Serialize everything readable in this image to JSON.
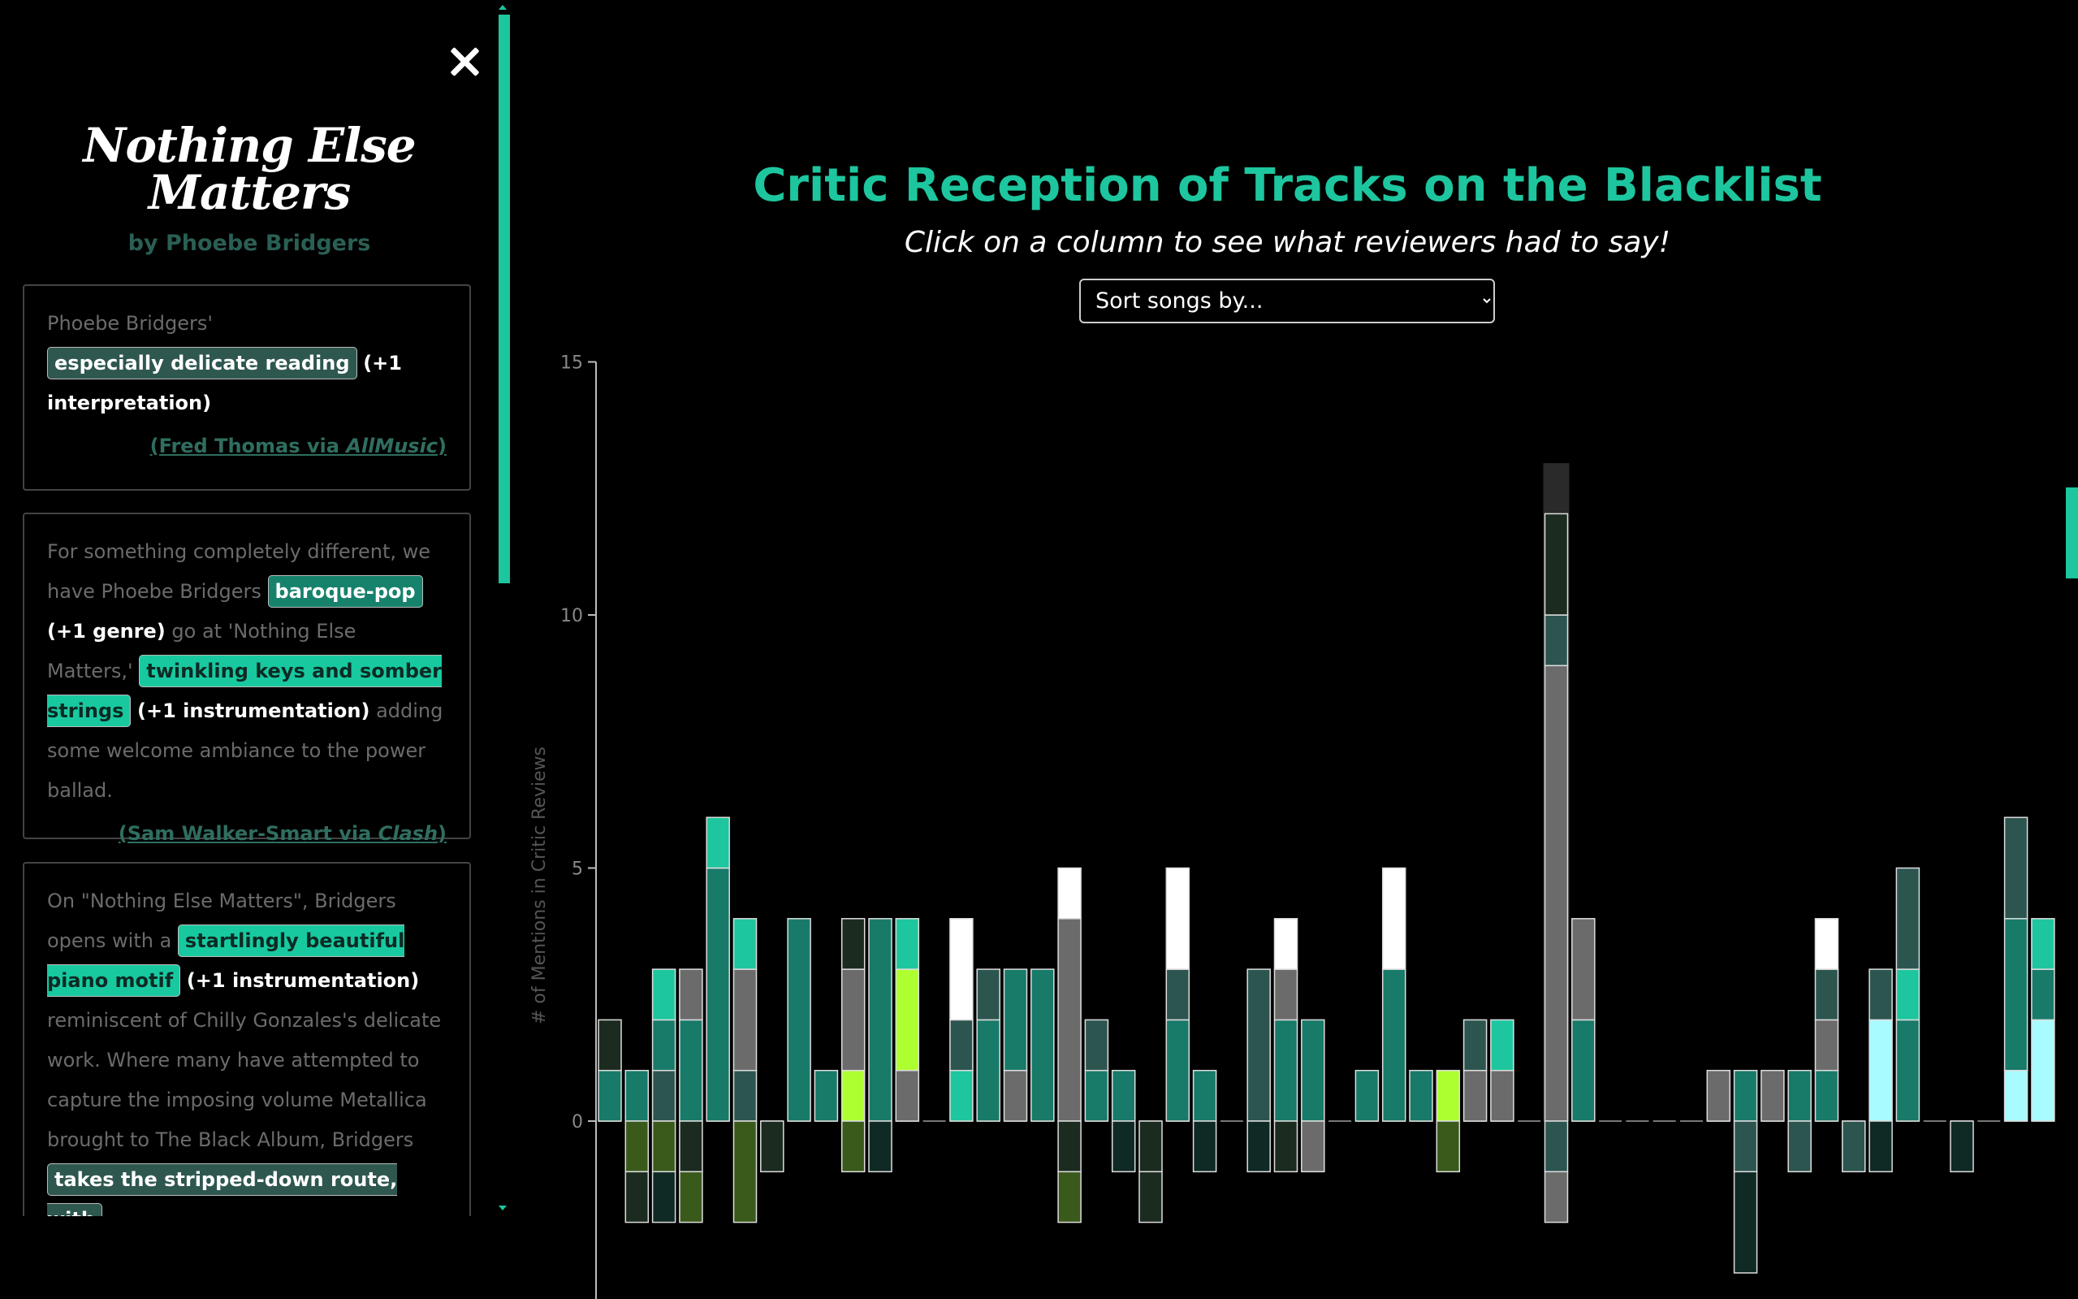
{
  "sidebar": {
    "close_label": "",
    "song_title_line1": "Nothing Else",
    "song_title_line2": "Matters",
    "artist": "by Phoebe Bridgers",
    "reviews": [
      {
        "pre": "Phoebe Bridgers'",
        "highlight1": "especially delicate reading",
        "tag1": "(+1 interpretation)",
        "cite_prefix": "(Fred Thomas via ",
        "cite_source": "AllMusic",
        "cite_suffix": ")"
      },
      {
        "pre": "For something completely different, we have Phoebe Bridgers",
        "highlight1": "baroque-pop",
        "tag1": "(+1 genre)",
        "mid": "go at 'Nothing Else Matters,'",
        "highlight2": "twinkling keys and somber strings",
        "tag2": "(+1 instrumentation)",
        "post": "adding some welcome ambiance to the power ballad.",
        "cite_prefix": "(Sam Walker-Smart via ",
        "cite_source": "Clash",
        "cite_suffix": ")"
      },
      {
        "pre": "On \"Nothing Else Matters\", Bridgers opens with a",
        "highlight1": "startlingly beautiful piano motif",
        "tag1": "(+1 instrumentation)",
        "mid": "reminiscent of Chilly Gonzales's delicate work. Where many have attempted to capture the imposing volume Metallica brought to The Black Album, Bridgers",
        "highlight2": "takes the stripped-down route, with"
      }
    ]
  },
  "header": {
    "title": "Critic Reception of Tracks on the Blacklist",
    "subtitle": "Click on a column to see what reviewers had to say!",
    "sort_placeholder": "Sort songs by..."
  },
  "colors": {
    "accent": "#1dc69e",
    "c0": "#187a68",
    "c1": "#1dc69e",
    "c2": "#6b6b6b",
    "c3": "#2d5550",
    "c4": "#ffffff",
    "c5": "#adff2f",
    "c6": "#3a5a1c",
    "c7": "#0f2a25",
    "c8": "#1c2b20",
    "c9": "#a8fbff"
  },
  "chart_data": {
    "type": "bar",
    "stacked": true,
    "ylabel": "# of Mentions in Critic Reviews",
    "ylim": [
      -3.5,
      15
    ],
    "yticks": [
      0,
      5,
      10,
      15
    ],
    "selected_index": 35,
    "songs": [
      {
        "pos": [
          [
            "c0",
            1
          ],
          [
            "c8",
            1
          ]
        ],
        "neg": []
      },
      {
        "pos": [
          [
            "c0",
            1
          ]
        ],
        "neg": [
          [
            "c6",
            1
          ],
          [
            "c8",
            1
          ]
        ]
      },
      {
        "pos": [
          [
            "c3",
            1
          ],
          [
            "c0",
            1
          ],
          [
            "c1",
            1
          ]
        ],
        "neg": [
          [
            "c6",
            1
          ],
          [
            "c7",
            1
          ]
        ]
      },
      {
        "pos": [
          [
            "c0",
            2
          ],
          [
            "c2",
            1
          ]
        ],
        "neg": [
          [
            "c8",
            1
          ],
          [
            "c6",
            1
          ]
        ]
      },
      {
        "pos": [
          [
            "c0",
            5
          ],
          [
            "c1",
            1
          ]
        ],
        "neg": []
      },
      {
        "pos": [
          [
            "c3",
            1
          ],
          [
            "c2",
            2
          ],
          [
            "c1",
            1
          ]
        ],
        "neg": [
          [
            "c6",
            2
          ]
        ]
      },
      {
        "pos": [],
        "neg": [
          [
            "c8",
            1
          ]
        ]
      },
      {
        "pos": [
          [
            "c0",
            4
          ]
        ],
        "neg": []
      },
      {
        "pos": [
          [
            "c0",
            1
          ]
        ],
        "neg": []
      },
      {
        "pos": [
          [
            "c5",
            1
          ],
          [
            "c2",
            2
          ],
          [
            "c8",
            1
          ]
        ],
        "neg": [
          [
            "c6",
            1
          ]
        ]
      },
      {
        "pos": [
          [
            "c0",
            4
          ]
        ],
        "neg": [
          [
            "c7",
            1
          ]
        ]
      },
      {
        "pos": [
          [
            "c2",
            1
          ],
          [
            "c5",
            2
          ],
          [
            "c1",
            1
          ]
        ],
        "neg": []
      },
      {
        "pos": [],
        "neg": []
      },
      {
        "pos": [
          [
            "c1",
            1
          ],
          [
            "c3",
            1
          ],
          [
            "c4",
            2
          ]
        ],
        "neg": []
      },
      {
        "pos": [
          [
            "c0",
            2
          ],
          [
            "c3",
            1
          ]
        ],
        "neg": []
      },
      {
        "pos": [
          [
            "c2",
            1
          ],
          [
            "c0",
            2
          ]
        ],
        "neg": []
      },
      {
        "pos": [
          [
            "c0",
            3
          ]
        ],
        "neg": []
      },
      {
        "pos": [
          [
            "c2",
            4
          ],
          [
            "c4",
            1
          ]
        ],
        "neg": [
          [
            "c8",
            1
          ],
          [
            "c6",
            1
          ]
        ]
      },
      {
        "pos": [
          [
            "c0",
            1
          ],
          [
            "c3",
            1
          ]
        ],
        "neg": []
      },
      {
        "pos": [
          [
            "c0",
            1
          ]
        ],
        "neg": [
          [
            "c7",
            1
          ]
        ]
      },
      {
        "pos": [],
        "neg": [
          [
            "c8",
            1
          ],
          [
            "c8",
            1
          ]
        ]
      },
      {
        "pos": [
          [
            "c0",
            2
          ],
          [
            "c3",
            1
          ],
          [
            "c4",
            2
          ]
        ],
        "neg": []
      },
      {
        "pos": [
          [
            "c0",
            1
          ]
        ],
        "neg": [
          [
            "c7",
            1
          ]
        ]
      },
      {
        "pos": [],
        "neg": []
      },
      {
        "pos": [
          [
            "c3",
            3
          ]
        ],
        "neg": [
          [
            "c7",
            1
          ]
        ]
      },
      {
        "pos": [
          [
            "c0",
            2
          ],
          [
            "c2",
            1
          ],
          [
            "c4",
            1
          ]
        ],
        "neg": [
          [
            "c8",
            1
          ]
        ]
      },
      {
        "pos": [
          [
            "c0",
            2
          ]
        ],
        "neg": [
          [
            "c2",
            1
          ]
        ]
      },
      {
        "pos": [],
        "neg": []
      },
      {
        "pos": [
          [
            "c0",
            1
          ]
        ],
        "neg": []
      },
      {
        "pos": [
          [
            "c0",
            3
          ],
          [
            "c4",
            2
          ]
        ],
        "neg": []
      },
      {
        "pos": [
          [
            "c0",
            1
          ]
        ],
        "neg": []
      },
      {
        "pos": [
          [
            "c5",
            1
          ]
        ],
        "neg": [
          [
            "c6",
            1
          ]
        ]
      },
      {
        "pos": [
          [
            "c2",
            1
          ],
          [
            "c3",
            1
          ]
        ],
        "neg": []
      },
      {
        "pos": [
          [
            "c2",
            1
          ],
          [
            "c1",
            1
          ]
        ],
        "neg": []
      },
      {
        "pos": [],
        "neg": []
      },
      {
        "pos": [
          [
            "c2",
            9
          ],
          [
            "c3",
            1
          ],
          [
            "c8",
            2
          ]
        ],
        "neg": [
          [
            "c3",
            1
          ],
          [
            "c2",
            1
          ]
        ]
      },
      {
        "pos": [
          [
            "c0",
            2
          ],
          [
            "c2",
            2
          ]
        ],
        "neg": []
      },
      {
        "pos": [],
        "neg": []
      },
      {
        "pos": [],
        "neg": []
      },
      {
        "pos": [],
        "neg": []
      },
      {
        "pos": [],
        "neg": []
      },
      {
        "pos": [
          [
            "c2",
            1
          ]
        ],
        "neg": []
      },
      {
        "pos": [
          [
            "c0",
            1
          ]
        ],
        "neg": [
          [
            "c3",
            1
          ],
          [
            "c7",
            2
          ]
        ]
      },
      {
        "pos": [
          [
            "c2",
            1
          ]
        ],
        "neg": []
      },
      {
        "pos": [
          [
            "c0",
            1
          ]
        ],
        "neg": [
          [
            "c3",
            1
          ]
        ]
      },
      {
        "pos": [
          [
            "c0",
            1
          ],
          [
            "c2",
            1
          ],
          [
            "c3",
            1
          ],
          [
            "c4",
            1
          ]
        ],
        "neg": []
      },
      {
        "pos": [],
        "neg": [
          [
            "c3",
            1
          ]
        ]
      },
      {
        "pos": [
          [
            "c9",
            2
          ],
          [
            "c3",
            1
          ]
        ],
        "neg": [
          [
            "c7",
            1
          ]
        ]
      },
      {
        "pos": [
          [
            "c0",
            2
          ],
          [
            "c1",
            1
          ],
          [
            "c3",
            2
          ]
        ],
        "neg": []
      },
      {
        "pos": [],
        "neg": []
      },
      {
        "pos": [],
        "neg": [
          [
            "c7",
            1
          ]
        ]
      },
      {
        "pos": [],
        "neg": []
      },
      {
        "pos": [
          [
            "c9",
            1
          ],
          [
            "c0",
            3
          ],
          [
            "c3",
            2
          ]
        ],
        "neg": []
      },
      {
        "pos": [
          [
            "c9",
            2
          ],
          [
            "c0",
            1
          ],
          [
            "c1",
            1
          ]
        ],
        "neg": []
      }
    ]
  }
}
